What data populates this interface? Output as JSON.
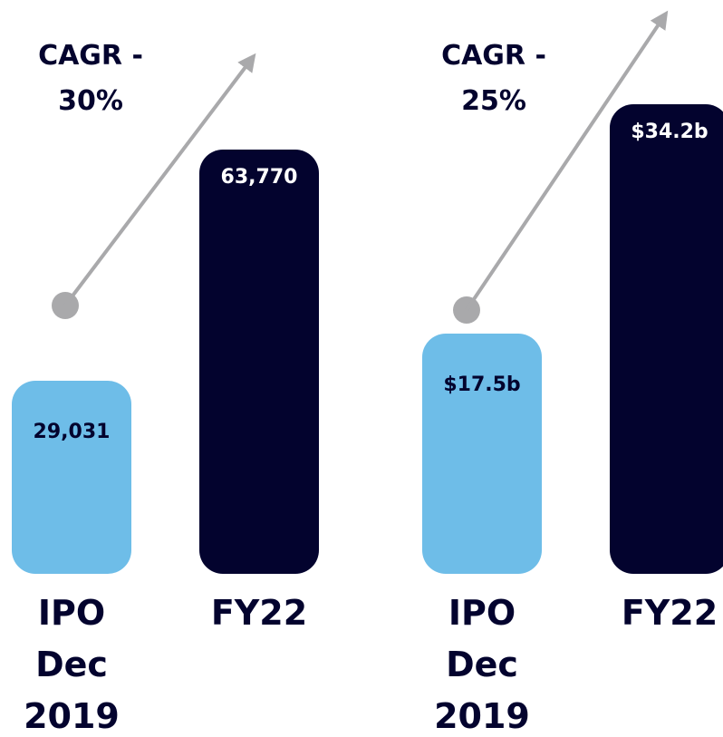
{
  "chart_data": [
    {
      "type": "bar",
      "annotation": "CAGR - 30%",
      "categories": [
        "IPO Dec 2019",
        "FY22"
      ],
      "values": [
        29031,
        63770
      ],
      "value_labels": [
        "29,031",
        "63,770"
      ],
      "colors": [
        "#6ebde8",
        "#03032e"
      ]
    },
    {
      "type": "bar",
      "annotation": "CAGR - 25%",
      "categories": [
        "IPO Dec 2019",
        "FY22"
      ],
      "values": [
        17.5,
        34.2
      ],
      "value_labels": [
        "$17.5b",
        "$34.2b"
      ],
      "colors": [
        "#6ebde8",
        "#03032e"
      ]
    }
  ]
}
